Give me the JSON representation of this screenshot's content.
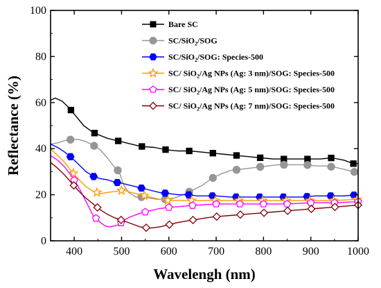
{
  "chart_data": {
    "type": "line",
    "xlabel": "Wavelengh (nm)",
    "ylabel": "Reflectance (%)",
    "xlim": [
      350,
      1000
    ],
    "ylim": [
      0,
      100
    ],
    "xticks": [
      400,
      500,
      600,
      700,
      800,
      900,
      1000
    ],
    "yticks": [
      0,
      20,
      40,
      60,
      80,
      100
    ],
    "legend_position": "top-right",
    "series": [
      {
        "name": "Bare SC",
        "legend": [
          "Bare SC"
        ],
        "color": "#000000",
        "marker": "square",
        "x": [
          350,
          360,
          375,
          390,
          420,
          440,
          470,
          490,
          520,
          540,
          570,
          595,
          620,
          645,
          670,
          695,
          720,
          745,
          770,
          795,
          820,
          845,
          870,
          895,
          920,
          945,
          970,
          990,
          1000
        ],
        "y": [
          61,
          62,
          60.5,
          57.5,
          50,
          47,
          44.5,
          43.5,
          42,
          41,
          40.5,
          39.5,
          39,
          39,
          38.5,
          38,
          37.5,
          37,
          36.5,
          36,
          35.5,
          35.5,
          35.5,
          35.5,
          35.5,
          36,
          35,
          33.5,
          33.5
        ],
        "marker_x": [
          393,
          443,
          493,
          543,
          593,
          643,
          693,
          743,
          793,
          843,
          893,
          943,
          990
        ]
      },
      {
        "name": "SC/SiO2/SOG",
        "legend": [
          "SC/SiO",
          "2",
          "/SOG"
        ],
        "color": "#969696",
        "marker": "circle",
        "x": [
          350,
          365,
          380,
          395,
          410,
          425,
          440,
          455,
          470,
          485,
          495,
          505,
          515,
          530,
          545,
          560,
          575,
          590,
          610,
          630,
          650,
          670,
          690,
          710,
          730,
          750,
          770,
          790,
          810,
          830,
          850,
          870,
          890,
          910,
          930,
          950,
          970,
          990,
          1000
        ],
        "y": [
          42,
          42.5,
          43.5,
          44,
          44,
          43,
          41.5,
          39.5,
          36,
          32,
          30,
          24,
          21,
          19,
          19,
          18.5,
          18,
          18,
          18.5,
          20,
          22,
          24,
          27,
          29,
          30.5,
          31,
          31.5,
          32,
          32.5,
          33,
          33,
          33,
          33,
          32.5,
          32.5,
          32,
          31,
          30,
          29.5
        ],
        "marker_x": [
          392,
          442,
          492,
          542,
          592,
          643,
          693,
          743,
          793,
          843,
          893,
          943,
          992
        ]
      },
      {
        "name": "SC/SiO2/SOG: Species-500",
        "legend": [
          "SC/SiO",
          "2",
          "/SOG: Species-500"
        ],
        "color": "#0000ff",
        "marker": "hexagon",
        "x": [
          350,
          365,
          380,
          395,
          410,
          425,
          440,
          455,
          470,
          485,
          500,
          520,
          540,
          560,
          580,
          600,
          620,
          640,
          660,
          680,
          700,
          730,
          760,
          790,
          820,
          850,
          880,
          910,
          940,
          970,
          1000
        ],
        "y": [
          42,
          40.5,
          38.5,
          36,
          33,
          30,
          28,
          27,
          26.5,
          25.5,
          25,
          24,
          23,
          22,
          21,
          20.5,
          20,
          20,
          19.5,
          19.5,
          19.5,
          19,
          19,
          19,
          19,
          19,
          19,
          19.5,
          19.5,
          19.5,
          20
        ],
        "marker_x": [
          392,
          441,
          491,
          542,
          592,
          642,
          692,
          742,
          792,
          842,
          892,
          942,
          991
        ]
      },
      {
        "name": "SC/ SiO2/Ag NPs (Ag: 3 nm)/SOG: Species-500",
        "legend": [
          "SC/ SiO",
          "2",
          "/Ag NPs (Ag: 3 nm)/SOG: Species-500"
        ],
        "color": "#ff9900",
        "marker": "star",
        "x": [
          350,
          365,
          380,
          395,
          410,
          425,
          440,
          455,
          470,
          490,
          505,
          520,
          540,
          560,
          580,
          600,
          630,
          660,
          700,
          750,
          800,
          850,
          900,
          950,
          1000
        ],
        "y": [
          40,
          37,
          34,
          30,
          26.5,
          23.5,
          21.5,
          20.5,
          21,
          21.5,
          22,
          21,
          20,
          19,
          18,
          17.5,
          17.5,
          17.5,
          17.5,
          17.5,
          17.5,
          17.5,
          17.5,
          17.5,
          18
        ],
        "marker_x": [
          398,
          448,
          500,
          548,
          598,
          648,
          698,
          748,
          798,
          848,
          898,
          948,
          998
        ]
      },
      {
        "name": "SC/ SiO2/Ag NPs (Ag: 5 nm)/SOG: Species-500",
        "legend": [
          "SC/ SiO",
          "2",
          "/Ag NPs (Ag: 5 nm)/SOG: Species-500"
        ],
        "color": "#ff00ff",
        "marker": "pentagon",
        "x": [
          350,
          365,
          380,
          395,
          410,
          425,
          440,
          455,
          465,
          475,
          485,
          495,
          505,
          520,
          540,
          560,
          580,
          600,
          630,
          660,
          700,
          750,
          800,
          850,
          900,
          950,
          1000
        ],
        "y": [
          37,
          35,
          32,
          28,
          23,
          17,
          11,
          8,
          6.5,
          6,
          6.5,
          7,
          9,
          10.5,
          12,
          13,
          14,
          14.5,
          15,
          15.5,
          16,
          16,
          16,
          16,
          16.5,
          16.5,
          17
        ],
        "marker_x": [
          400,
          446,
          499,
          550,
          600,
          650,
          700,
          750,
          800,
          850,
          900,
          950,
          1000
        ]
      },
      {
        "name": "SC/ SiO2/Ag NPs (Ag: 7 nm)/SOG: Species-500",
        "legend": [
          "SC/ SiO",
          "2",
          "/Ag NPs (Ag: 7 nm)/SOG: Species-500"
        ],
        "color": "#800000",
        "marker": "diamond",
        "x": [
          350,
          365,
          380,
          395,
          410,
          425,
          440,
          455,
          470,
          485,
          500,
          520,
          540,
          560,
          580,
          600,
          620,
          650,
          680,
          700,
          730,
          760,
          790,
          820,
          850,
          880,
          910,
          940,
          970,
          1000
        ],
        "y": [
          34,
          31.5,
          28.5,
          25,
          21.5,
          18.5,
          16,
          13.5,
          11.5,
          10,
          9,
          7.5,
          6,
          5.5,
          6,
          7,
          8,
          9,
          10,
          10.5,
          11,
          11.5,
          12,
          12.5,
          13,
          13.5,
          14,
          14.5,
          15,
          15.5
        ],
        "marker_x": [
          399,
          449,
          499,
          552,
          601,
          651,
          701,
          751,
          801,
          851,
          901,
          951,
          1000
        ]
      }
    ]
  }
}
